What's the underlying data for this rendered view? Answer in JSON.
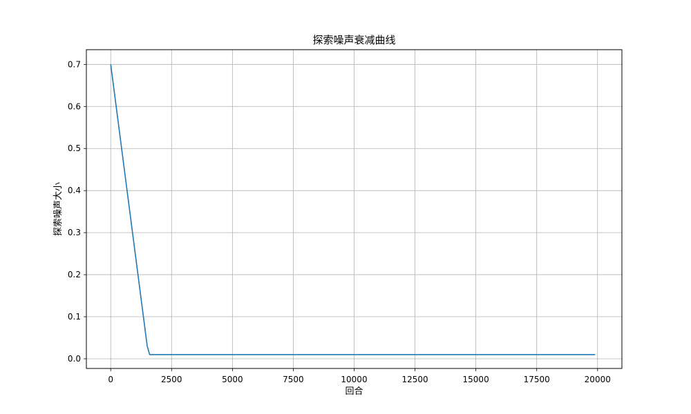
{
  "chart_data": {
    "type": "line",
    "title": "探索噪声衰减曲线",
    "xlabel": "回合",
    "ylabel": "探索噪声大小",
    "xlim": [
      -1000,
      21000
    ],
    "ylim": [
      -0.023,
      0.735
    ],
    "xticks": [
      0,
      2500,
      5000,
      7500,
      10000,
      12500,
      15000,
      17500,
      20000
    ],
    "yticks": [
      0.0,
      0.1,
      0.2,
      0.3,
      0.4,
      0.5,
      0.6,
      0.7
    ],
    "xtick_labels": [
      "0",
      "2500",
      "5000",
      "7500",
      "10000",
      "12500",
      "15000",
      "17500",
      "20000"
    ],
    "ytick_labels": [
      "0.0",
      "0.1",
      "0.2",
      "0.3",
      "0.4",
      "0.5",
      "0.6",
      "0.7"
    ],
    "grid": true,
    "series": [
      {
        "color": "#1f77b4",
        "x": [
          0,
          1500,
          1600,
          19900
        ],
        "y": [
          0.7,
          0.03,
          0.01,
          0.01
        ]
      }
    ]
  }
}
